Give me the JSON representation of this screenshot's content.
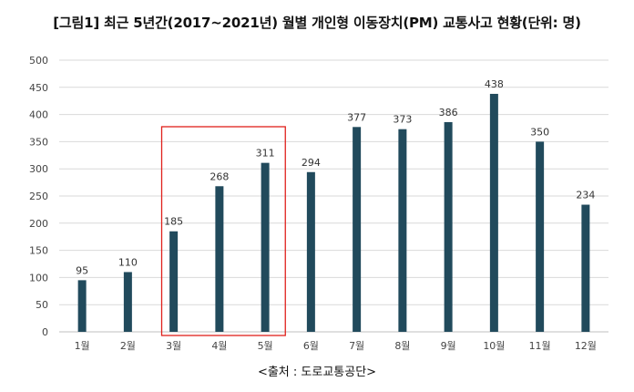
{
  "title": "[그림1] 최근 5년간(2017~2021년) 월별 개인형 이동장치(PM) 교통사고 현황(단위: 명)",
  "source": "<출처 : 도로교통공단>",
  "colors": {
    "bar": "#214a5c",
    "grid": "#d9d9d9",
    "highlight": "#e0201b"
  },
  "chart_data": {
    "type": "bar",
    "title": "[그림1] 최근 5년간(2017~2021년) 월별 개인형 이동장치(PM) 교통사고 현황(단위: 명)",
    "categories": [
      "1월",
      "2월",
      "3월",
      "4월",
      "5월",
      "6월",
      "7월",
      "8월",
      "9월",
      "10월",
      "11월",
      "12월"
    ],
    "values": [
      95,
      110,
      185,
      268,
      311,
      294,
      377,
      373,
      386,
      438,
      350,
      234
    ],
    "ylim": [
      0,
      500
    ],
    "yticks": [
      0,
      50,
      100,
      150,
      200,
      250,
      300,
      350,
      400,
      450,
      500
    ],
    "grid": true,
    "legend": "none",
    "highlight_categories": [
      "3월",
      "4월",
      "5월"
    ]
  }
}
